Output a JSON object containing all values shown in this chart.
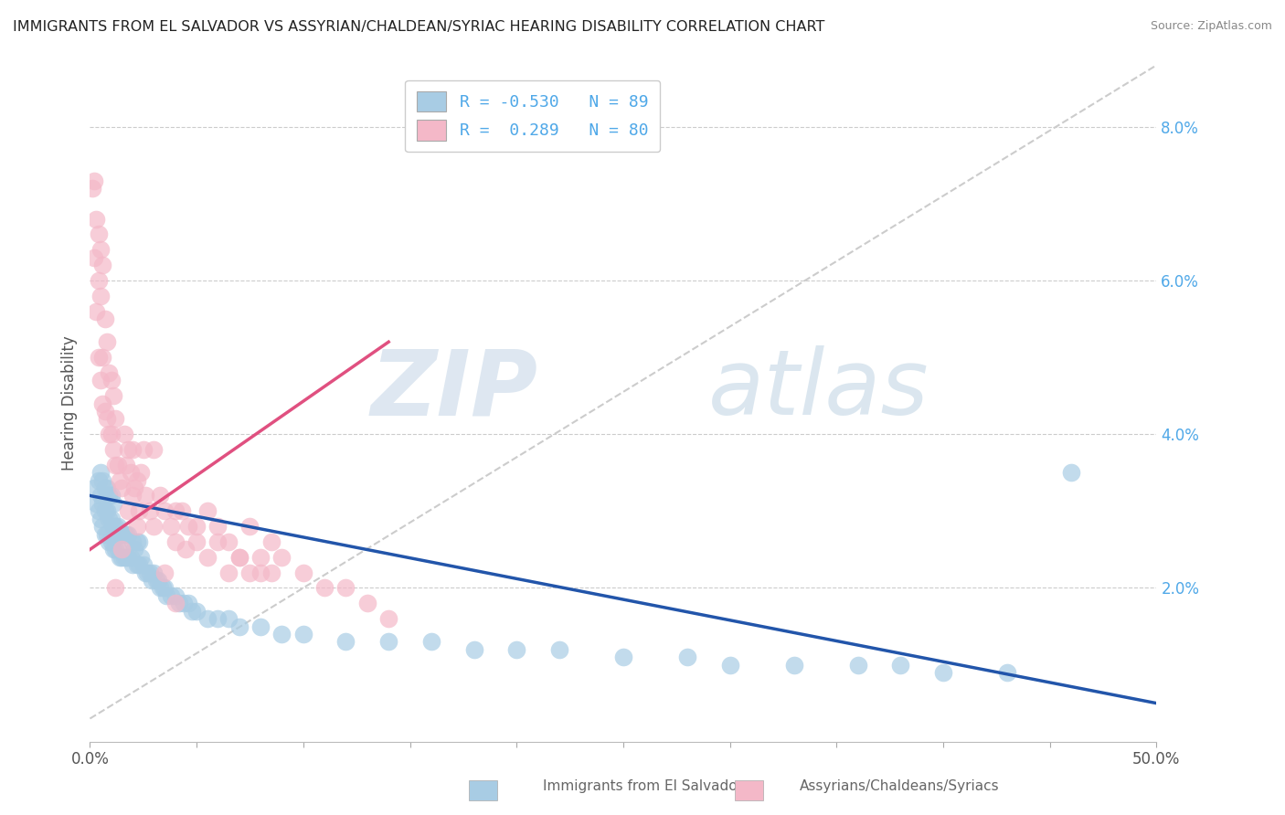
{
  "title": "IMMIGRANTS FROM EL SALVADOR VS ASSYRIAN/CHALDEAN/SYRIAC HEARING DISABILITY CORRELATION CHART",
  "source": "Source: ZipAtlas.com",
  "ylabel": "Hearing Disability",
  "xlim": [
    0.0,
    0.5
  ],
  "ylim": [
    0.0,
    0.088
  ],
  "legend_r_blue": "-0.530",
  "legend_n_blue": "89",
  "legend_r_pink": " 0.289",
  "legend_n_pink": "80",
  "blue_color": "#a8cce4",
  "pink_color": "#f4b8c8",
  "blue_line_color": "#2255aa",
  "pink_line_color": "#e05080",
  "gray_line_color": "#cccccc",
  "watermark_zip": "ZIP",
  "watermark_atlas": "atlas",
  "background_color": "#ffffff",
  "blue_trend_x0": 0.0,
  "blue_trend_y0": 0.032,
  "blue_trend_x1": 0.5,
  "blue_trend_y1": 0.005,
  "pink_trend_x0": 0.0,
  "pink_trend_y0": 0.025,
  "pink_trend_x1": 0.14,
  "pink_trend_y1": 0.052,
  "blue_scatter_x": [
    0.002,
    0.003,
    0.004,
    0.004,
    0.005,
    0.005,
    0.005,
    0.006,
    0.006,
    0.006,
    0.007,
    0.007,
    0.007,
    0.008,
    0.008,
    0.008,
    0.009,
    0.009,
    0.009,
    0.01,
    0.01,
    0.01,
    0.011,
    0.011,
    0.011,
    0.012,
    0.012,
    0.013,
    0.013,
    0.014,
    0.014,
    0.015,
    0.015,
    0.016,
    0.016,
    0.017,
    0.017,
    0.018,
    0.018,
    0.019,
    0.02,
    0.02,
    0.021,
    0.022,
    0.022,
    0.023,
    0.023,
    0.024,
    0.025,
    0.026,
    0.027,
    0.028,
    0.029,
    0.03,
    0.031,
    0.032,
    0.033,
    0.034,
    0.035,
    0.036,
    0.038,
    0.04,
    0.042,
    0.044,
    0.046,
    0.048,
    0.05,
    0.055,
    0.06,
    0.065,
    0.07,
    0.08,
    0.09,
    0.1,
    0.12,
    0.14,
    0.16,
    0.18,
    0.2,
    0.22,
    0.25,
    0.28,
    0.3,
    0.33,
    0.36,
    0.38,
    0.4,
    0.43,
    0.46
  ],
  "blue_scatter_y": [
    0.033,
    0.031,
    0.03,
    0.034,
    0.029,
    0.032,
    0.035,
    0.028,
    0.031,
    0.034,
    0.027,
    0.03,
    0.033,
    0.027,
    0.03,
    0.033,
    0.026,
    0.029,
    0.032,
    0.026,
    0.029,
    0.032,
    0.025,
    0.028,
    0.031,
    0.025,
    0.028,
    0.025,
    0.028,
    0.024,
    0.027,
    0.024,
    0.027,
    0.024,
    0.027,
    0.024,
    0.027,
    0.024,
    0.027,
    0.024,
    0.023,
    0.026,
    0.025,
    0.023,
    0.026,
    0.023,
    0.026,
    0.024,
    0.023,
    0.022,
    0.022,
    0.022,
    0.021,
    0.022,
    0.021,
    0.021,
    0.02,
    0.02,
    0.02,
    0.019,
    0.019,
    0.019,
    0.018,
    0.018,
    0.018,
    0.017,
    0.017,
    0.016,
    0.016,
    0.016,
    0.015,
    0.015,
    0.014,
    0.014,
    0.013,
    0.013,
    0.013,
    0.012,
    0.012,
    0.012,
    0.011,
    0.011,
    0.01,
    0.01,
    0.01,
    0.01,
    0.009,
    0.009,
    0.035
  ],
  "pink_scatter_x": [
    0.001,
    0.002,
    0.002,
    0.003,
    0.003,
    0.004,
    0.004,
    0.004,
    0.005,
    0.005,
    0.005,
    0.006,
    0.006,
    0.006,
    0.007,
    0.007,
    0.008,
    0.008,
    0.009,
    0.009,
    0.01,
    0.01,
    0.011,
    0.011,
    0.012,
    0.012,
    0.013,
    0.014,
    0.015,
    0.016,
    0.017,
    0.018,
    0.019,
    0.02,
    0.021,
    0.022,
    0.023,
    0.024,
    0.026,
    0.028,
    0.03,
    0.033,
    0.035,
    0.038,
    0.04,
    0.043,
    0.046,
    0.05,
    0.055,
    0.06,
    0.065,
    0.07,
    0.075,
    0.08,
    0.085,
    0.09,
    0.1,
    0.11,
    0.12,
    0.13,
    0.14,
    0.03,
    0.04,
    0.045,
    0.05,
    0.055,
    0.06,
    0.065,
    0.07,
    0.075,
    0.08,
    0.085,
    0.035,
    0.04,
    0.025,
    0.02,
    0.022,
    0.018,
    0.015,
    0.012
  ],
  "pink_scatter_y": [
    0.072,
    0.063,
    0.073,
    0.056,
    0.068,
    0.05,
    0.06,
    0.066,
    0.047,
    0.058,
    0.064,
    0.044,
    0.05,
    0.062,
    0.043,
    0.055,
    0.042,
    0.052,
    0.04,
    0.048,
    0.04,
    0.047,
    0.038,
    0.045,
    0.036,
    0.042,
    0.036,
    0.034,
    0.033,
    0.04,
    0.036,
    0.038,
    0.035,
    0.032,
    0.033,
    0.034,
    0.03,
    0.035,
    0.032,
    0.03,
    0.028,
    0.032,
    0.03,
    0.028,
    0.026,
    0.03,
    0.028,
    0.026,
    0.03,
    0.028,
    0.026,
    0.024,
    0.028,
    0.022,
    0.026,
    0.024,
    0.022,
    0.02,
    0.02,
    0.018,
    0.016,
    0.038,
    0.03,
    0.025,
    0.028,
    0.024,
    0.026,
    0.022,
    0.024,
    0.022,
    0.024,
    0.022,
    0.022,
    0.018,
    0.038,
    0.038,
    0.028,
    0.03,
    0.025,
    0.02
  ],
  "legend_box_color": "#f0f4f8"
}
